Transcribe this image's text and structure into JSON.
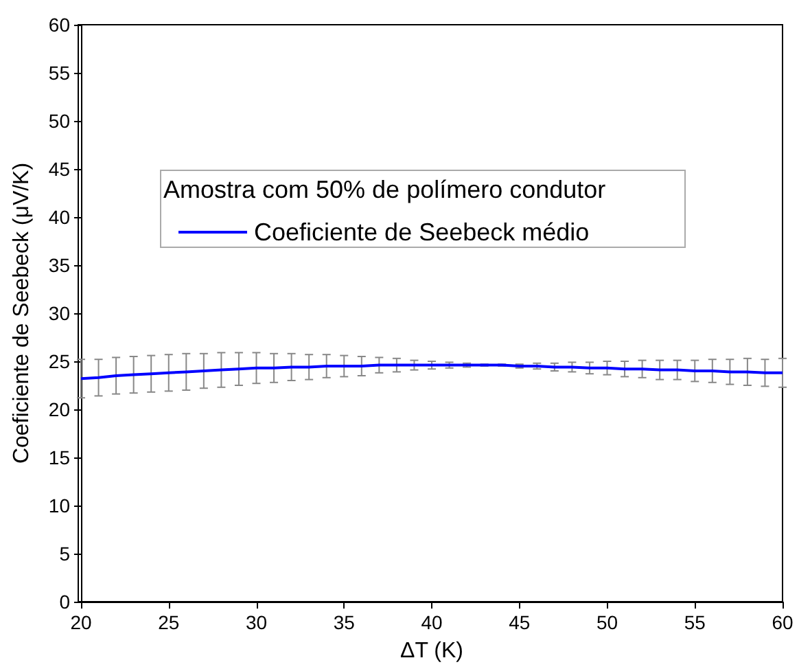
{
  "chart_data": {
    "type": "line",
    "xlabel": "ΔT (K)",
    "ylabel": "Coeficiente de Seebeck (μV/K)",
    "legend_title": "Amostra com 50% de polímero condutor",
    "legend": "left",
    "grid": false,
    "marker": "none",
    "line_style": "solid",
    "xlim": [
      20,
      60
    ],
    "xticks": [
      20,
      25,
      30,
      35,
      40,
      45,
      50,
      55,
      60
    ],
    "ylim": [
      0,
      60
    ],
    "yticks": [
      0,
      5,
      10,
      15,
      20,
      25,
      30,
      35,
      40,
      45,
      50,
      55,
      60
    ],
    "series": [
      {
        "name": "Coeficiente de Seebeck médio",
        "color": "#0000ff",
        "x": [
          20,
          21,
          22,
          23,
          24,
          25,
          26,
          27,
          28,
          29,
          30,
          31,
          32,
          33,
          34,
          35,
          36,
          37,
          38,
          39,
          40,
          41,
          42,
          43,
          44,
          45,
          46,
          47,
          48,
          49,
          50,
          51,
          52,
          53,
          54,
          55,
          56,
          57,
          58,
          59,
          60
        ],
        "values": [
          23.2,
          23.3,
          23.5,
          23.6,
          23.7,
          23.8,
          23.9,
          24.0,
          24.1,
          24.2,
          24.3,
          24.3,
          24.4,
          24.4,
          24.5,
          24.5,
          24.5,
          24.6,
          24.6,
          24.6,
          24.6,
          24.6,
          24.6,
          24.6,
          24.6,
          24.5,
          24.5,
          24.4,
          24.4,
          24.3,
          24.3,
          24.2,
          24.2,
          24.1,
          24.1,
          24.0,
          24.0,
          23.9,
          23.9,
          23.8,
          23.8
        ],
        "errors": [
          2.0,
          1.9,
          1.9,
          1.9,
          1.9,
          1.9,
          1.9,
          1.8,
          1.8,
          1.7,
          1.6,
          1.5,
          1.4,
          1.3,
          1.2,
          1.1,
          1.0,
          0.8,
          0.7,
          0.5,
          0.4,
          0.3,
          0.2,
          0.1,
          0.1,
          0.2,
          0.3,
          0.4,
          0.5,
          0.6,
          0.7,
          0.8,
          0.9,
          1.0,
          1.0,
          1.1,
          1.2,
          1.3,
          1.4,
          1.4,
          1.5
        ]
      }
    ]
  }
}
